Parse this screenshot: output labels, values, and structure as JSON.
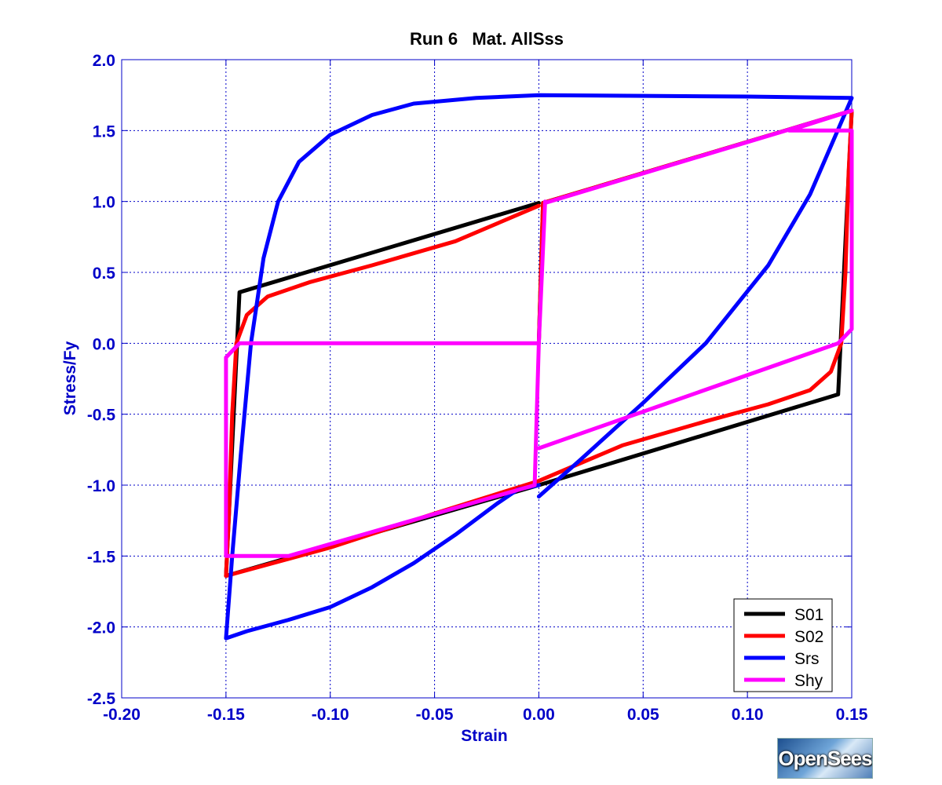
{
  "chart_data": {
    "type": "line",
    "title": "Run 6   Mat. AllSss",
    "xlabel": "Strain",
    "ylabel": "Stress/Fy",
    "xlim": [
      -0.2,
      0.15
    ],
    "ylim": [
      -2.5,
      2.0
    ],
    "xticks": [
      "-0.20",
      "-0.15",
      "-0.10",
      "-0.05",
      "0.00",
      "0.05",
      "0.10",
      "0.15"
    ],
    "xtick_values": [
      -0.2,
      -0.15,
      -0.1,
      -0.05,
      0.0,
      0.05,
      0.1,
      0.15
    ],
    "yticks": [
      "2.0",
      "1.5",
      "1.0",
      "0.5",
      "0.0",
      "-0.5",
      "-1.0",
      "-1.5",
      "-2.0",
      "-2.5"
    ],
    "ytick_values": [
      2.0,
      1.5,
      1.0,
      0.5,
      0.0,
      -0.5,
      -1.0,
      -1.5,
      -2.0,
      -2.5
    ],
    "grid": true,
    "legend_position": "bottom-right",
    "axis_color": "#0000c8",
    "series": [
      {
        "name": "S01",
        "color": "#000000",
        "points": [
          [
            0.0,
            0.0
          ],
          [
            0.002,
            0.99
          ],
          [
            0.15,
            1.64
          ],
          [
            0.1435,
            -0.36
          ],
          [
            0.0,
            -1.0
          ],
          [
            -0.15,
            -1.64
          ],
          [
            -0.1435,
            0.36
          ],
          [
            0.0,
            0.99
          ]
        ]
      },
      {
        "name": "S02",
        "color": "#ff0000",
        "points": [
          [
            0.0,
            0.0
          ],
          [
            0.002,
            0.99
          ],
          [
            0.15,
            1.64
          ],
          [
            0.1485,
            1.2
          ],
          [
            0.147,
            0.5
          ],
          [
            0.145,
            0.0
          ],
          [
            0.14,
            -0.2
          ],
          [
            0.13,
            -0.33
          ],
          [
            0.11,
            -0.43
          ],
          [
            0.08,
            -0.55
          ],
          [
            0.04,
            -0.72
          ],
          [
            0.0,
            -0.97
          ],
          [
            -0.05,
            -1.2
          ],
          [
            -0.1,
            -1.44
          ],
          [
            -0.15,
            -1.64
          ],
          [
            -0.1485,
            -1.2
          ],
          [
            -0.147,
            -0.5
          ],
          [
            -0.145,
            0.0
          ],
          [
            -0.14,
            0.2
          ],
          [
            -0.13,
            0.33
          ],
          [
            -0.11,
            0.43
          ],
          [
            -0.08,
            0.55
          ],
          [
            -0.04,
            0.72
          ],
          [
            0.0,
            0.97
          ]
        ]
      },
      {
        "name": "Srs",
        "color": "#0000ff",
        "points": [
          [
            0.0,
            -1.08
          ],
          [
            0.02,
            -0.82
          ],
          [
            0.05,
            -0.42
          ],
          [
            0.08,
            0.0
          ],
          [
            0.11,
            0.55
          ],
          [
            0.13,
            1.05
          ],
          [
            0.15,
            1.73
          ],
          [
            0.1,
            1.74
          ],
          [
            0.05,
            1.745
          ],
          [
            0.0,
            1.75
          ],
          [
            -0.03,
            1.73
          ],
          [
            -0.06,
            1.69
          ],
          [
            -0.08,
            1.61
          ],
          [
            -0.1,
            1.47
          ],
          [
            -0.115,
            1.28
          ],
          [
            -0.125,
            1.0
          ],
          [
            -0.132,
            0.6
          ],
          [
            -0.138,
            0.0
          ],
          [
            -0.143,
            -0.8
          ],
          [
            -0.147,
            -1.5
          ],
          [
            -0.15,
            -2.08
          ],
          [
            -0.14,
            -2.03
          ],
          [
            -0.12,
            -1.95
          ],
          [
            -0.1,
            -1.86
          ],
          [
            -0.08,
            -1.72
          ],
          [
            -0.06,
            -1.55
          ],
          [
            -0.04,
            -1.35
          ],
          [
            -0.02,
            -1.13
          ],
          [
            -0.01,
            -1.03
          ],
          [
            0.0,
            -1.0
          ]
        ]
      },
      {
        "name": "Shy",
        "color": "#ff00ff",
        "points": [
          [
            0.0,
            0.0
          ],
          [
            -0.1435,
            0.0
          ],
          [
            -0.15,
            -0.1
          ],
          [
            -0.15,
            -1.5
          ],
          [
            -0.12,
            -1.5
          ],
          [
            -0.002,
            -1.0
          ],
          [
            0.0,
            0.0
          ],
          [
            0.003,
            1.0
          ],
          [
            0.003,
            0.99
          ],
          [
            0.15,
            1.64
          ],
          [
            0.12,
            1.5
          ],
          [
            0.15,
            1.5
          ],
          [
            0.15,
            0.1
          ],
          [
            0.1435,
            0.0
          ],
          [
            0.0,
            -0.74
          ]
        ]
      }
    ]
  },
  "logo": {
    "text": "OpenSees"
  }
}
